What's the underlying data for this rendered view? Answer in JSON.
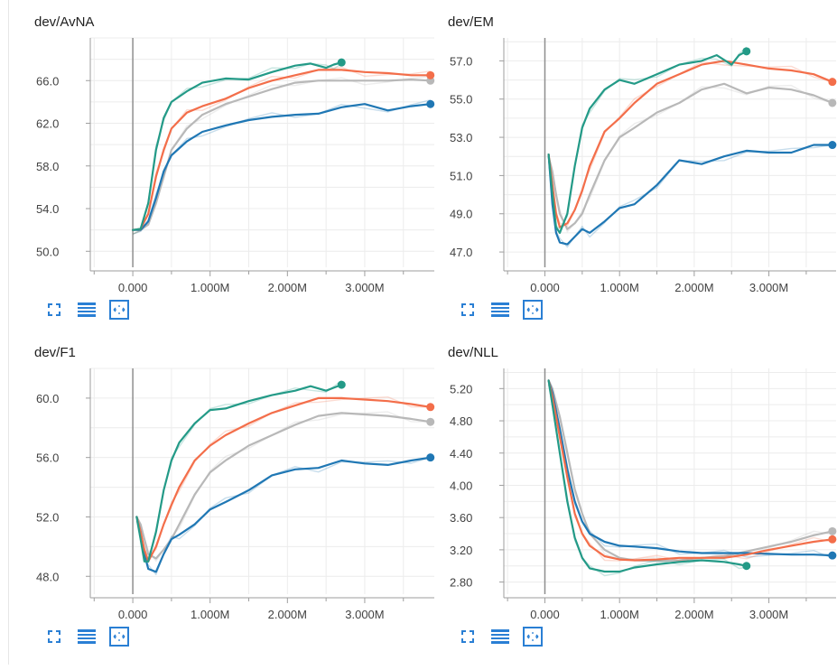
{
  "colors": {
    "green": "#239a87",
    "orange": "#f36e4a",
    "gray": "#b8b8b8",
    "blue": "#1f77b4",
    "toolbar": "#2a7fd4"
  },
  "toolbar": {
    "icons": [
      "fit-to-screen-icon",
      "toggle-log-scale-icon",
      "fit-domain-icon"
    ]
  },
  "chart_data": [
    {
      "type": "line",
      "title": "dev/AvNA",
      "x_unit": "M",
      "x_ticks": [
        "0.000",
        "1.000M",
        "2.000M",
        "3.000M"
      ],
      "y_ticks": [
        "50.0",
        "54.0",
        "58.0",
        "62.0",
        "66.0"
      ],
      "xlim": [
        -0.55,
        3.9
      ],
      "ylim": [
        48.5,
        70.0
      ],
      "grid": true,
      "series": [
        {
          "color": "green",
          "x": [
            0.0,
            0.1,
            0.2,
            0.3,
            0.4,
            0.5,
            0.7,
            0.9,
            1.2,
            1.5,
            1.8,
            2.1,
            2.3,
            2.5,
            2.6,
            2.7
          ],
          "y": [
            52.0,
            52.1,
            54.5,
            59.5,
            62.5,
            64.0,
            65.0,
            65.8,
            66.2,
            66.1,
            66.8,
            67.4,
            67.6,
            67.2,
            67.5,
            67.7
          ]
        },
        {
          "color": "orange",
          "x": [
            0.0,
            0.1,
            0.2,
            0.3,
            0.4,
            0.5,
            0.7,
            0.9,
            1.2,
            1.5,
            1.8,
            2.1,
            2.4,
            2.7,
            3.0,
            3.3,
            3.6,
            3.85
          ],
          "y": [
            52.0,
            52.1,
            53.5,
            57.0,
            59.5,
            61.5,
            63.0,
            63.6,
            64.3,
            65.3,
            66.0,
            66.5,
            67.0,
            67.0,
            66.8,
            66.7,
            66.5,
            66.5
          ]
        },
        {
          "color": "gray",
          "x": [
            0.0,
            0.1,
            0.2,
            0.3,
            0.4,
            0.5,
            0.7,
            0.9,
            1.2,
            1.5,
            1.8,
            2.1,
            2.4,
            2.7,
            3.0,
            3.3,
            3.6,
            3.85
          ],
          "y": [
            52.0,
            52.0,
            52.5,
            54.5,
            57.0,
            59.5,
            61.5,
            62.8,
            63.8,
            64.5,
            65.2,
            65.8,
            66.0,
            66.0,
            66.0,
            66.0,
            66.1,
            66.0
          ]
        },
        {
          "color": "blue",
          "x": [
            0.0,
            0.1,
            0.2,
            0.3,
            0.4,
            0.5,
            0.7,
            0.9,
            1.2,
            1.5,
            1.8,
            2.1,
            2.4,
            2.7,
            3.0,
            3.3,
            3.6,
            3.85
          ],
          "y": [
            52.0,
            52.0,
            52.8,
            55.0,
            57.5,
            59.0,
            60.3,
            61.2,
            61.8,
            62.3,
            62.6,
            62.8,
            62.9,
            63.5,
            63.8,
            63.2,
            63.6,
            63.8
          ]
        }
      ]
    },
    {
      "type": "line",
      "title": "dev/EM",
      "x_unit": "M",
      "x_ticks": [
        "0.000",
        "1.000M",
        "2.000M",
        "3.000M"
      ],
      "y_ticks": [
        "47.0",
        "49.0",
        "51.0",
        "53.0",
        "55.0",
        "57.0"
      ],
      "xlim": [
        -0.55,
        3.9
      ],
      "ylim": [
        46.2,
        58.2
      ],
      "grid": true,
      "series": [
        {
          "color": "green",
          "x": [
            0.05,
            0.1,
            0.15,
            0.2,
            0.3,
            0.4,
            0.5,
            0.6,
            0.8,
            1.0,
            1.2,
            1.5,
            1.8,
            2.1,
            2.3,
            2.5,
            2.6,
            2.7
          ],
          "y": [
            52.1,
            50.0,
            48.3,
            48.0,
            49.0,
            51.5,
            53.5,
            54.5,
            55.5,
            56.0,
            55.8,
            56.3,
            56.8,
            57.0,
            57.3,
            56.8,
            57.3,
            57.5
          ]
        },
        {
          "color": "orange",
          "x": [
            0.05,
            0.1,
            0.15,
            0.2,
            0.3,
            0.4,
            0.5,
            0.6,
            0.8,
            1.0,
            1.2,
            1.5,
            1.8,
            2.1,
            2.4,
            2.7,
            3.0,
            3.3,
            3.6,
            3.85
          ],
          "y": [
            52.1,
            50.5,
            49.0,
            48.3,
            48.5,
            49.2,
            50.2,
            51.5,
            53.3,
            54.0,
            54.8,
            55.8,
            56.3,
            56.8,
            57.0,
            56.8,
            56.6,
            56.5,
            56.3,
            55.9
          ]
        },
        {
          "color": "gray",
          "x": [
            0.05,
            0.1,
            0.15,
            0.2,
            0.3,
            0.4,
            0.5,
            0.6,
            0.8,
            1.0,
            1.2,
            1.5,
            1.8,
            2.1,
            2.4,
            2.7,
            3.0,
            3.3,
            3.6,
            3.85
          ],
          "y": [
            52.0,
            51.2,
            50.0,
            49.0,
            48.2,
            48.5,
            49.0,
            50.0,
            51.8,
            53.0,
            53.5,
            54.3,
            54.8,
            55.5,
            55.8,
            55.3,
            55.6,
            55.5,
            55.2,
            54.8
          ]
        },
        {
          "color": "blue",
          "x": [
            0.05,
            0.1,
            0.15,
            0.2,
            0.3,
            0.4,
            0.5,
            0.6,
            0.8,
            1.0,
            1.2,
            1.5,
            1.8,
            2.1,
            2.4,
            2.7,
            3.0,
            3.3,
            3.6,
            3.85
          ],
          "y": [
            52.1,
            49.5,
            48.0,
            47.5,
            47.4,
            47.8,
            48.2,
            48.0,
            48.6,
            49.3,
            49.5,
            50.5,
            51.8,
            51.6,
            52.0,
            52.3,
            52.2,
            52.2,
            52.6,
            52.6
          ]
        }
      ]
    },
    {
      "type": "line",
      "title": "dev/F1",
      "x_unit": "M",
      "x_ticks": [
        "0.000",
        "1.000M",
        "2.000M",
        "3.000M"
      ],
      "y_ticks": [
        "48.0",
        "52.0",
        "56.0",
        "60.0"
      ],
      "xlim": [
        -0.55,
        3.9
      ],
      "ylim": [
        46.8,
        62.0
      ],
      "grid": true,
      "series": [
        {
          "color": "green",
          "x": [
            0.05,
            0.1,
            0.15,
            0.2,
            0.3,
            0.4,
            0.5,
            0.6,
            0.8,
            1.0,
            1.2,
            1.5,
            1.8,
            2.1,
            2.3,
            2.5,
            2.6,
            2.7
          ],
          "y": [
            52.0,
            50.5,
            49.0,
            49.0,
            51.0,
            53.8,
            55.8,
            57.0,
            58.3,
            59.2,
            59.3,
            59.8,
            60.2,
            60.5,
            60.8,
            60.5,
            60.7,
            60.9
          ]
        },
        {
          "color": "orange",
          "x": [
            0.05,
            0.1,
            0.15,
            0.2,
            0.3,
            0.4,
            0.5,
            0.6,
            0.8,
            1.0,
            1.2,
            1.5,
            1.8,
            2.1,
            2.4,
            2.7,
            3.0,
            3.3,
            3.6,
            3.85
          ],
          "y": [
            52.0,
            51.0,
            49.8,
            49.0,
            50.0,
            51.5,
            52.8,
            54.0,
            55.8,
            56.8,
            57.5,
            58.3,
            59.0,
            59.5,
            60.0,
            60.0,
            59.9,
            59.8,
            59.6,
            59.4
          ]
        },
        {
          "color": "gray",
          "x": [
            0.05,
            0.1,
            0.15,
            0.2,
            0.3,
            0.4,
            0.5,
            0.6,
            0.8,
            1.0,
            1.2,
            1.5,
            1.8,
            2.1,
            2.4,
            2.7,
            3.0,
            3.3,
            3.6,
            3.85
          ],
          "y": [
            52.0,
            51.5,
            50.5,
            49.5,
            49.2,
            49.8,
            50.5,
            51.5,
            53.5,
            55.0,
            55.8,
            56.8,
            57.5,
            58.2,
            58.8,
            59.0,
            58.9,
            58.8,
            58.6,
            58.4
          ]
        },
        {
          "color": "blue",
          "x": [
            0.05,
            0.1,
            0.15,
            0.2,
            0.3,
            0.4,
            0.5,
            0.6,
            0.8,
            1.0,
            1.2,
            1.5,
            1.8,
            2.1,
            2.4,
            2.7,
            3.0,
            3.3,
            3.6,
            3.85
          ],
          "y": [
            52.0,
            51.0,
            49.5,
            48.5,
            48.3,
            49.5,
            50.5,
            50.8,
            51.5,
            52.5,
            53.0,
            53.8,
            54.8,
            55.2,
            55.3,
            55.8,
            55.6,
            55.5,
            55.8,
            56.0
          ]
        }
      ]
    },
    {
      "type": "line",
      "title": "dev/NLL",
      "x_unit": "M",
      "x_ticks": [
        "0.000",
        "1.000M",
        "2.000M",
        "3.000M"
      ],
      "y_ticks": [
        "2.80",
        "3.20",
        "3.60",
        "4.00",
        "4.40",
        "4.80",
        "5.20"
      ],
      "xlim": [
        -0.55,
        3.9
      ],
      "ylim": [
        2.65,
        5.45
      ],
      "grid": true,
      "series": [
        {
          "color": "green",
          "x": [
            0.05,
            0.1,
            0.2,
            0.3,
            0.4,
            0.5,
            0.6,
            0.8,
            1.0,
            1.2,
            1.5,
            1.8,
            2.1,
            2.4,
            2.6,
            2.7
          ],
          "y": [
            5.3,
            5.0,
            4.4,
            3.8,
            3.35,
            3.1,
            2.97,
            2.93,
            2.93,
            2.98,
            3.02,
            3.05,
            3.07,
            3.05,
            3.02,
            3.0
          ]
        },
        {
          "color": "orange",
          "x": [
            0.05,
            0.1,
            0.2,
            0.3,
            0.4,
            0.5,
            0.6,
            0.8,
            1.0,
            1.2,
            1.5,
            1.8,
            2.1,
            2.4,
            2.7,
            3.0,
            3.3,
            3.6,
            3.85
          ],
          "y": [
            5.3,
            5.1,
            4.6,
            4.1,
            3.65,
            3.4,
            3.25,
            3.12,
            3.08,
            3.07,
            3.08,
            3.1,
            3.1,
            3.1,
            3.14,
            3.2,
            3.25,
            3.3,
            3.33
          ]
        },
        {
          "color": "gray",
          "x": [
            0.05,
            0.1,
            0.2,
            0.3,
            0.4,
            0.5,
            0.6,
            0.8,
            1.0,
            1.2,
            1.5,
            1.8,
            2.1,
            2.4,
            2.7,
            3.0,
            3.3,
            3.6,
            3.85
          ],
          "y": [
            5.3,
            5.2,
            4.85,
            4.4,
            3.95,
            3.65,
            3.4,
            3.2,
            3.1,
            3.07,
            3.06,
            3.07,
            3.1,
            3.12,
            3.18,
            3.24,
            3.3,
            3.38,
            3.43
          ]
        },
        {
          "color": "blue",
          "x": [
            0.05,
            0.1,
            0.2,
            0.3,
            0.4,
            0.5,
            0.6,
            0.8,
            1.0,
            1.2,
            1.5,
            1.8,
            2.1,
            2.4,
            2.7,
            3.0,
            3.3,
            3.6,
            3.85
          ],
          "y": [
            5.3,
            5.15,
            4.7,
            4.2,
            3.8,
            3.55,
            3.4,
            3.3,
            3.25,
            3.24,
            3.22,
            3.18,
            3.16,
            3.16,
            3.16,
            3.15,
            3.14,
            3.14,
            3.13
          ]
        }
      ]
    }
  ]
}
